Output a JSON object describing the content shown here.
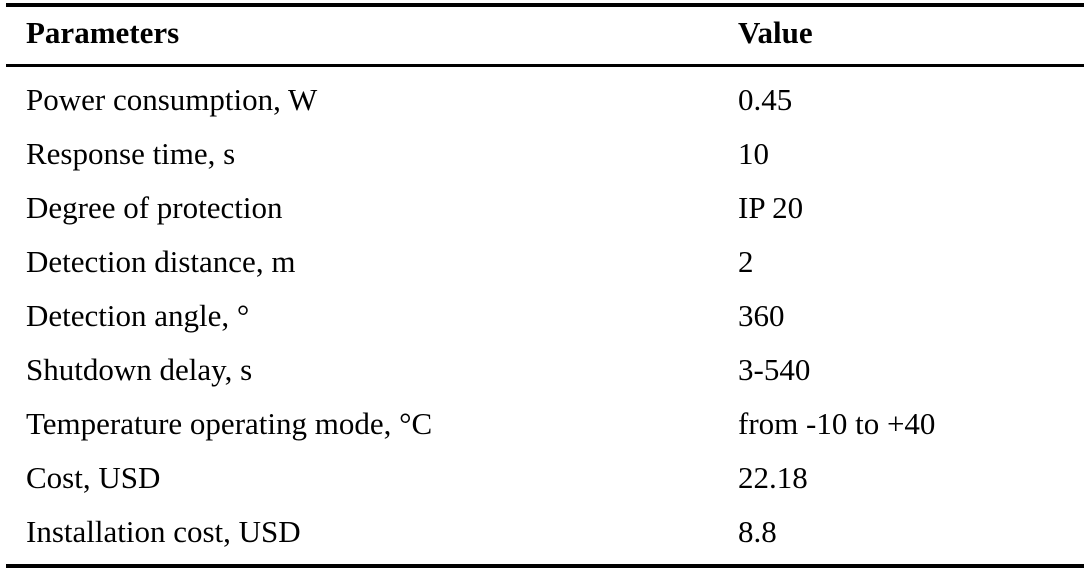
{
  "table": {
    "headers": {
      "parameter": "Parameters",
      "value": "Value"
    },
    "rows": [
      {
        "parameter": "Power consumption, W",
        "value": "0.45"
      },
      {
        "parameter": "Response time, s",
        "value": "10"
      },
      {
        "parameter": "Degree of protection",
        "value": "IP 20"
      },
      {
        "parameter": "Detection distance, m",
        "value": "2"
      },
      {
        "parameter": "Detection angle, °",
        "value": "360"
      },
      {
        "parameter": "Shutdown delay, s",
        "value": "3-540"
      },
      {
        "parameter": "Temperature operating mode, °C",
        "value": "from -10 to +40"
      },
      {
        "parameter": "Cost, USD",
        "value": "22.18"
      },
      {
        "parameter": "Installation cost, USD",
        "value": "8.8"
      }
    ]
  }
}
